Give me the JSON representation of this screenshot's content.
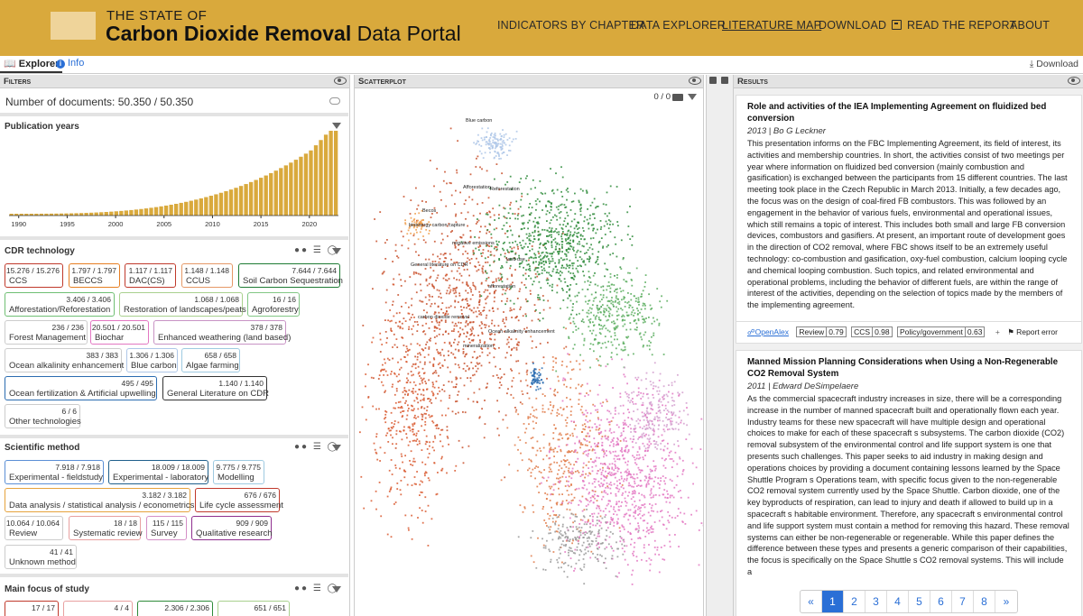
{
  "header": {
    "title_small": "THE STATE OF",
    "title_bold": "Carbon Dioxide Removal",
    "title_rest": "Data Portal",
    "nav": [
      "INDICATORS BY CHAPTER",
      "DATA EXPLORER",
      "LITERATURE MAP",
      "DOWNLOAD",
      "READ THE REPORT",
      "ABOUT"
    ],
    "active_nav": "LITERATURE MAP",
    "brand_color": "#d9a93c"
  },
  "subbar": {
    "explorer_tab": "Explorer",
    "info_tab": "Info",
    "download": "Download"
  },
  "filters": {
    "header": "Filters",
    "doc_count": "Number of documents: 50.350 / 50.350",
    "pub_years": {
      "title": "Publication years",
      "ticks": [
        "1990",
        "1995",
        "2000",
        "2005",
        "2010",
        "2015",
        "2020"
      ],
      "bar_color": "#d9a93c"
    },
    "cdr": {
      "title": "CDR technology",
      "chips": [
        {
          "cnt": "15.276 / 15.276",
          "lbl": "CCS",
          "color": "#c0392b"
        },
        {
          "cnt": "1.797 / 1.797",
          "lbl": "BECCS",
          "color": "#e67e22"
        },
        {
          "cnt": "1.117 / 1.117",
          "lbl": "DAC(CS)",
          "color": "#c0392b"
        },
        {
          "cnt": "1.148 / 1.148",
          "lbl": "CCUS",
          "color": "#e59866"
        },
        {
          "cnt": "7.644 / 7.644",
          "lbl": "Soil Carbon Sequestration",
          "color": "#1e7b34"
        },
        {
          "cnt": "3.406 / 3.406",
          "lbl": "Afforestation/Reforestation",
          "color": "#6fbf73"
        },
        {
          "cnt": "1.068 / 1.068",
          "lbl": "Restoration of landscapes/peats",
          "color": "#a9d18e"
        },
        {
          "cnt": "16 / 16",
          "lbl": "Agroforestry",
          "color": "#82c785"
        },
        {
          "cnt": "236 / 236",
          "lbl": "Forest Management",
          "color": "#cccccc"
        },
        {
          "cnt": "20.501 / 20.501",
          "lbl": "Biochar",
          "color": "#e377c2"
        },
        {
          "cnt": "378 / 378",
          "lbl": "Enhanced weathering (land based)",
          "color": "#c893c4"
        },
        {
          "cnt": "383 / 383",
          "lbl": "Ocean alkalinity enhancement",
          "color": "#cccccc"
        },
        {
          "cnt": "1.306 / 1.306",
          "lbl": "Blue carbon",
          "color": "#aec7e8"
        },
        {
          "cnt": "658 / 658",
          "lbl": "Algae farming",
          "color": "#9ecae1"
        },
        {
          "cnt": "495 / 495",
          "lbl": "Ocean fertilization & Artificial upwelling",
          "color": "#2b6cb0"
        },
        {
          "cnt": "1.140 / 1.140",
          "lbl": "General Literature on CDR",
          "color": "#333333"
        },
        {
          "cnt": "6 / 6",
          "lbl": "Other technologies",
          "color": "#cccccc"
        }
      ]
    },
    "method": {
      "title": "Scientific method",
      "chips": [
        {
          "cnt": "7.918 / 7.918",
          "lbl": "Experimental - fieldstudy",
          "color": "#5b8fd6"
        },
        {
          "cnt": "18.009 / 18.009",
          "lbl": "Experimental - laboratory",
          "color": "#1f5f8b"
        },
        {
          "cnt": "9.775 / 9.775",
          "lbl": "Modelling",
          "color": "#9ecae1"
        },
        {
          "cnt": "3.182 / 3.182",
          "lbl": "Data analysis / statistical analysis / econometrics",
          "color": "#e6a23c"
        },
        {
          "cnt": "676 / 676",
          "lbl": "Life cycle assessment",
          "color": "#c0392b"
        },
        {
          "cnt": "10.064 / 10.064",
          "lbl": "Review",
          "color": "#cccccc"
        },
        {
          "cnt": "18 / 18",
          "lbl": "Systematic review",
          "color": "#e8a0a0"
        },
        {
          "cnt": "115 / 115",
          "lbl": "Survey",
          "color": "#d48fc6"
        },
        {
          "cnt": "909 / 909",
          "lbl": "Qualitative research",
          "color": "#8e2f8e"
        },
        {
          "cnt": "41 / 41",
          "lbl": "Unknown method",
          "color": "#cccccc"
        }
      ]
    },
    "focus": {
      "title": "Main focus of study",
      "chips": [
        {
          "cnt": "17 / 17",
          "lbl": "",
          "color": "#c0392b"
        },
        {
          "cnt": "4 / 4",
          "lbl": "",
          "color": "#e8a0a0"
        },
        {
          "cnt": "2.306 / 2.306",
          "lbl": "",
          "color": "#2e8b3a"
        },
        {
          "cnt": "651 / 651",
          "lbl": "",
          "color": "#a9d18e"
        }
      ]
    }
  },
  "scatter": {
    "header": "Scatterplot",
    "counter": "0 / 0",
    "labels": [
      "Blue carbon",
      "Afforestation",
      "Reforestation",
      "Becos",
      "bioenergy carbon capture",
      "negative emissions",
      "General literature on CDR",
      "land use",
      "afforestation",
      "carbon dioxide removal",
      "Ocean alkalinity enhancement",
      "mineralization"
    ]
  },
  "results": {
    "header": "Results",
    "cards": [
      {
        "title": "Role and activities of the IEA Implementing Agreement on fluidized bed conversion",
        "meta": "2013 | Bo G Leckner",
        "body": "This presentation informs on the FBC Implementing Agreement, its field of interest, its activities and membership countries. In short, the activities consist of two meetings per year where information on fluidized bed conversion (mainly combustion and gasification) is exchanged between the participants from 15 different countries. The last meeting took place in the Czech Republic in March 2013.  Initially, a few decades ago, the focus was on the design of coal-fired FB combustors. This was followed by an engagement in the behavior of various fuels, environmental and operational issues, which still remains a topic of interest. This includes both small and large FB conversion devices, combustors and gasifiers. At present, an important route of development goes in the direction of CO2 removal, where FBC shows itself to be an extremely useful technology: co-combustion and gasification, oxy-fuel combustion, calcium looping cycle and chemical looping combustion. Such topics, and related environmental and operational problems, including the behavior of different fuels, are within the range of interest of the activities, depending on the selection of topics made by the members of the implementing agreement.",
        "source": "OpenAlex",
        "tags": [
          {
            "k": "Review",
            "v": "0.79"
          },
          {
            "k": "CCS",
            "v": "0.98"
          },
          {
            "k": "Policy/government",
            "v": "0.63"
          }
        ],
        "report": "Report error"
      },
      {
        "title": "Manned Mission Planning Considerations when Using a Non-Regenerable CO2 Removal System",
        "meta": "2011 | Edward DeSimpelaere",
        "body": "As the commercial spacecraft industry increases in size, there will be a corresponding increase in the number of manned spacecraft built and operationally flown each year. Industry teams for these new spacecraft will have multiple design and operational choices to make for each of these spacecraft s subsystems. The carbon dioxide (CO2) removal subsystem of the environmental control and life support system is one that presents such challenges. This paper seeks to aid industry in making design and operations choices by providing a document containing lessons learned by the Space Shuttle Program s Operations team, with specific focus given to the non-regenerable CO2 removal system currently used by the Space Shuttle. Carbon dioxide, one of the key byproducts of respiration, can lead to injury and death if allowed to build up in a spacecraft s habitable environment. Therefore, any spacecraft s environmental control and life support system must contain a method for removing this hazard. These removal systems can either be non-regenerable or regenerable. While this paper defines the difference between these types and presents a generic comparison of their capabilities, the focus is specifically on the Space Shuttle s CO2 removal systems. This will include a"
      }
    ],
    "pager": [
      "«",
      "1",
      "2",
      "3",
      "4",
      "5",
      "6",
      "7",
      "8",
      "»"
    ],
    "active_page": "1"
  }
}
